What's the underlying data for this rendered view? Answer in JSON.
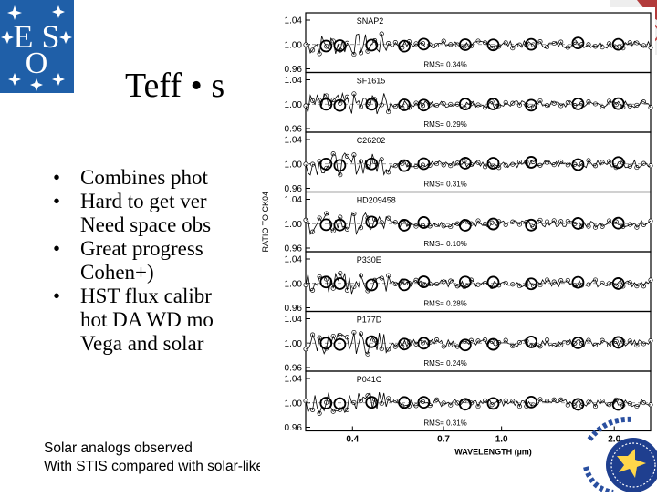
{
  "slide": {
    "title": "Teff • s",
    "bullets": [
      {
        "lines": [
          "Combines phot"
        ]
      },
      {
        "lines": [
          "Hard to get ver",
          "Need space obs"
        ]
      },
      {
        "lines": [
          "Great progress",
          "Cohen+)"
        ]
      },
      {
        "lines": [
          "HST flux calibr",
          "hot DA WD mo",
          "Vega and solar"
        ]
      }
    ],
    "caption_lines": [
      "Solar analogs observed",
      "With STIS compared with solar-like Kurucz models"
    ]
  },
  "logos": {
    "eso_text": "ESO",
    "eso_color": "#1f5fa8",
    "iac_color": "#1f3f8f"
  },
  "chart_data": {
    "type": "line",
    "ylabel": "RATIO TO CK04",
    "xlabel": "WAVELENGTH (µm)",
    "x_ticks": [
      "0.4",
      "0.7",
      "1.0",
      "2.0"
    ],
    "x_scale": "log",
    "xlim": [
      0.3,
      2.5
    ],
    "y_ticks": [
      "1.04",
      "1.00",
      "0.96"
    ],
    "ylim": [
      0.96,
      1.04
    ],
    "panels": [
      {
        "name": "SNAP2",
        "rms": "RMS= 0.34%"
      },
      {
        "name": "SF1615",
        "rms": "RMS= 0.29%"
      },
      {
        "name": "C26202",
        "rms": "RMS= 0.31%"
      },
      {
        "name": "HD209458",
        "rms": "RMS= 0.10%"
      },
      {
        "name": "P330E",
        "rms": "RMS= 0.28%"
      },
      {
        "name": "P177D",
        "rms": "RMS= 0.24%"
      },
      {
        "name": "P041C",
        "rms": "RMS= 0.31%"
      }
    ]
  }
}
